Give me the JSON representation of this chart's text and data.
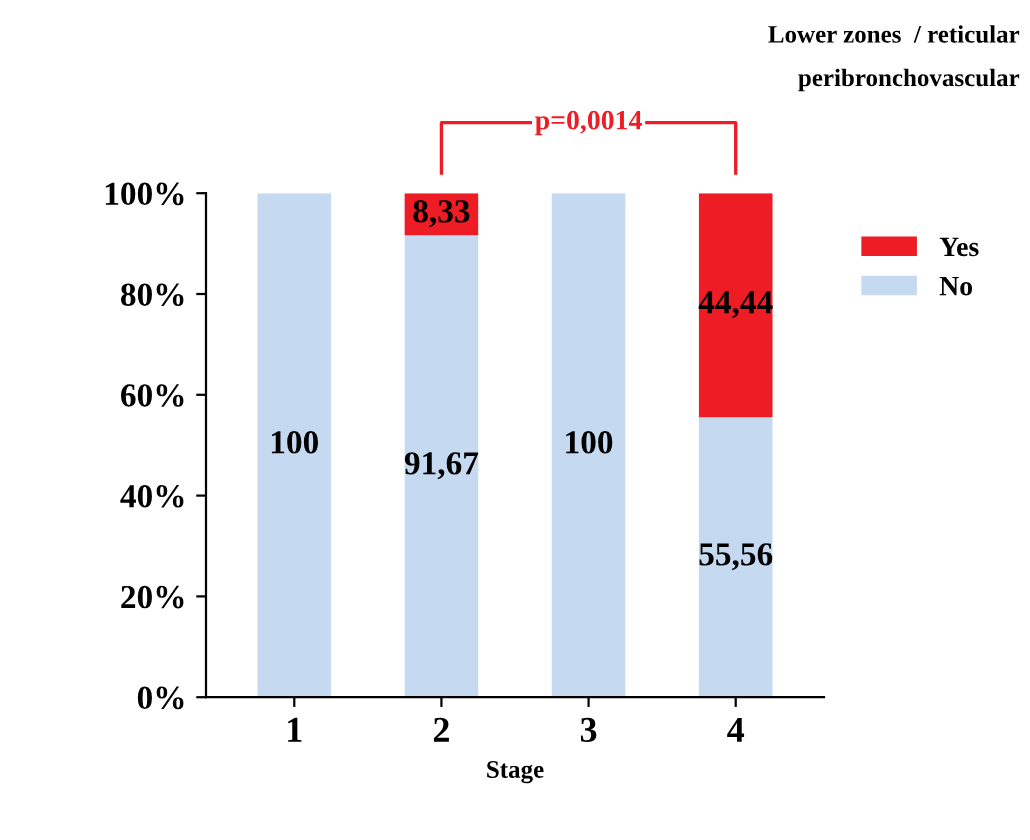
{
  "chart_data": {
    "type": "bar",
    "stacked": true,
    "title": "Lower zones  / reticular\nperibronchovascular",
    "xlabel": "Stage",
    "categories": [
      "1",
      "2",
      "3",
      "4"
    ],
    "series": [
      {
        "name": "No",
        "color": "#c5d9f1",
        "values": [
          100,
          91.67,
          100,
          55.56
        ],
        "value_labels": [
          "100",
          "91,67",
          "100",
          "55,56"
        ]
      },
      {
        "name": "Yes",
        "color": "#ee1c24",
        "values": [
          0,
          8.33,
          0,
          44.44
        ],
        "value_labels": [
          null,
          "8,33",
          null,
          "44,44"
        ]
      }
    ],
    "ylim": [
      0,
      100
    ],
    "yticks": [
      {
        "value": 0,
        "label": "0%"
      },
      {
        "value": 20,
        "label": "20%"
      },
      {
        "value": 40,
        "label": "40%"
      },
      {
        "value": 60,
        "label": "60%"
      },
      {
        "value": 80,
        "label": "80%"
      },
      {
        "value": 100,
        "label": "100%"
      }
    ],
    "annotations": [
      "p=0,0014"
    ],
    "legend": "right",
    "grid": false
  }
}
